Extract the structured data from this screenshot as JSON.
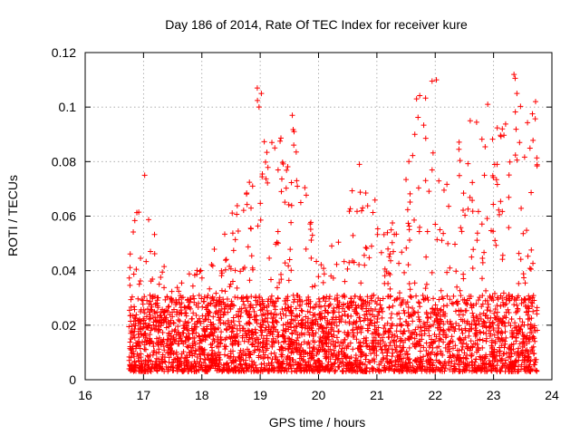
{
  "chart_data": {
    "type": "scatter",
    "title": "Day 186 of 2014, Rate Of TEC Index for receiver kure",
    "xlabel": "GPS time / hours",
    "ylabel": "ROTI / TECUs",
    "xlim": [
      16,
      24
    ],
    "ylim": [
      0,
      0.12
    ],
    "xticks": [
      "16",
      "17",
      "18",
      "19",
      "20",
      "21",
      "22",
      "23",
      "24"
    ],
    "yticks": [
      "0",
      "0.02",
      "0.04",
      "0.06",
      "0.08",
      "0.1",
      "0.12"
    ],
    "grid": true,
    "marker": "plus",
    "series": [
      {
        "name": "ROTI",
        "color": "#ff0000",
        "x_range": [
          16.75,
          23.75
        ],
        "profile": [
          {
            "x": 16.8,
            "max": 0.056
          },
          {
            "x": 17.0,
            "max": 0.075
          },
          {
            "x": 17.2,
            "max": 0.052
          },
          {
            "x": 17.5,
            "max": 0.035
          },
          {
            "x": 17.9,
            "max": 0.042
          },
          {
            "x": 18.3,
            "max": 0.05
          },
          {
            "x": 18.6,
            "max": 0.066
          },
          {
            "x": 18.8,
            "max": 0.07
          },
          {
            "x": 18.95,
            "max": 0.107
          },
          {
            "x": 19.2,
            "max": 0.088
          },
          {
            "x": 19.55,
            "max": 0.098
          },
          {
            "x": 19.9,
            "max": 0.062
          },
          {
            "x": 20.1,
            "max": 0.043
          },
          {
            "x": 20.4,
            "max": 0.058
          },
          {
            "x": 20.7,
            "max": 0.079
          },
          {
            "x": 21.0,
            "max": 0.065
          },
          {
            "x": 21.2,
            "max": 0.055
          },
          {
            "x": 21.4,
            "max": 0.065
          },
          {
            "x": 21.7,
            "max": 0.104
          },
          {
            "x": 22.0,
            "max": 0.111
          },
          {
            "x": 22.3,
            "max": 0.085
          },
          {
            "x": 22.6,
            "max": 0.095
          },
          {
            "x": 22.9,
            "max": 0.101
          },
          {
            "x": 23.15,
            "max": 0.092
          },
          {
            "x": 23.35,
            "max": 0.113
          },
          {
            "x": 23.55,
            "max": 0.1
          },
          {
            "x": 23.75,
            "max": 0.102
          }
        ],
        "floor": 0.003,
        "points": [
          {
            "x": 18.95,
            "y": 0.107
          },
          {
            "x": 19.02,
            "y": 0.105
          },
          {
            "x": 18.98,
            "y": 0.1
          },
          {
            "x": 19.2,
            "y": 0.087
          },
          {
            "x": 19.25,
            "y": 0.085
          },
          {
            "x": 19.55,
            "y": 0.097
          },
          {
            "x": 19.58,
            "y": 0.091
          },
          {
            "x": 21.68,
            "y": 0.103
          },
          {
            "x": 21.65,
            "y": 0.09
          },
          {
            "x": 22.02,
            "y": 0.11
          },
          {
            "x": 22.9,
            "y": 0.101
          },
          {
            "x": 23.35,
            "y": 0.112
          },
          {
            "x": 23.4,
            "y": 0.105
          },
          {
            "x": 23.72,
            "y": 0.102
          },
          {
            "x": 17.02,
            "y": 0.075
          },
          {
            "x": 20.7,
            "y": 0.079
          },
          {
            "x": 22.6,
            "y": 0.095
          },
          {
            "x": 23.15,
            "y": 0.092
          }
        ]
      }
    ]
  }
}
